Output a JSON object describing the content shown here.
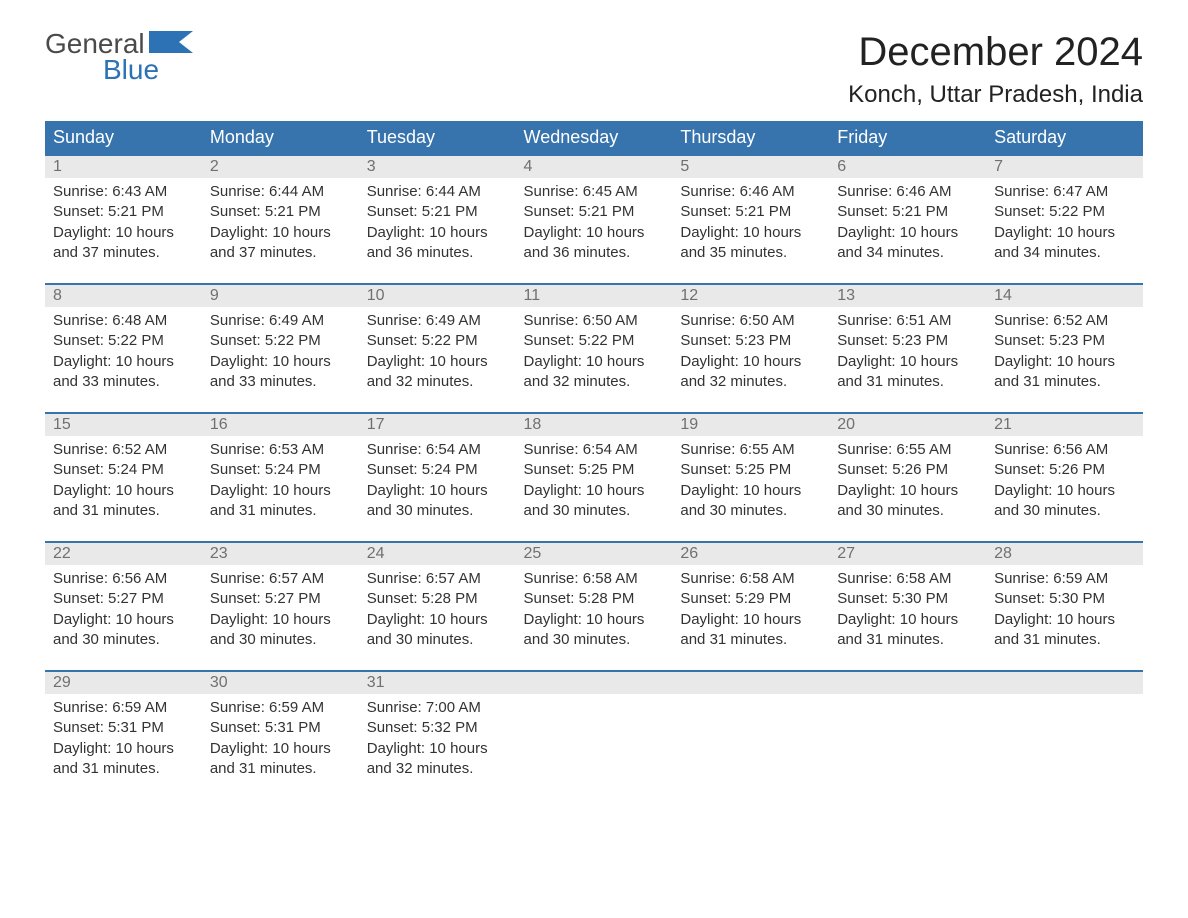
{
  "logo": {
    "word1": "General",
    "word2": "Blue",
    "flag_color": "#2d72b5",
    "word1_color": "#4a4a4a"
  },
  "title": "December 2024",
  "location": "Konch, Uttar Pradesh, India",
  "colors": {
    "header_bg": "#3773ad",
    "header_text": "#ffffff",
    "daynum_bg": "#e9e9e9",
    "daynum_text": "#707070",
    "body_text": "#333333",
    "row_border": "#3773ad",
    "page_bg": "#ffffff"
  },
  "typography": {
    "month_title_fontsize": 40,
    "location_fontsize": 24,
    "weekday_fontsize": 18,
    "daynum_fontsize": 16,
    "body_fontsize": 15
  },
  "weekdays": [
    "Sunday",
    "Monday",
    "Tuesday",
    "Wednesday",
    "Thursday",
    "Friday",
    "Saturday"
  ],
  "labels": {
    "sunrise": "Sunrise: ",
    "sunset": "Sunset: ",
    "daylight_prefix": "Daylight: ",
    "daylight_join": " and ",
    "daylight_suffix": "."
  },
  "weeks": [
    [
      {
        "n": "1",
        "sr": "6:43 AM",
        "ss": "5:21 PM",
        "dh": "10 hours",
        "dm": "37 minutes"
      },
      {
        "n": "2",
        "sr": "6:44 AM",
        "ss": "5:21 PM",
        "dh": "10 hours",
        "dm": "37 minutes"
      },
      {
        "n": "3",
        "sr": "6:44 AM",
        "ss": "5:21 PM",
        "dh": "10 hours",
        "dm": "36 minutes"
      },
      {
        "n": "4",
        "sr": "6:45 AM",
        "ss": "5:21 PM",
        "dh": "10 hours",
        "dm": "36 minutes"
      },
      {
        "n": "5",
        "sr": "6:46 AM",
        "ss": "5:21 PM",
        "dh": "10 hours",
        "dm": "35 minutes"
      },
      {
        "n": "6",
        "sr": "6:46 AM",
        "ss": "5:21 PM",
        "dh": "10 hours",
        "dm": "34 minutes"
      },
      {
        "n": "7",
        "sr": "6:47 AM",
        "ss": "5:22 PM",
        "dh": "10 hours",
        "dm": "34 minutes"
      }
    ],
    [
      {
        "n": "8",
        "sr": "6:48 AM",
        "ss": "5:22 PM",
        "dh": "10 hours",
        "dm": "33 minutes"
      },
      {
        "n": "9",
        "sr": "6:49 AM",
        "ss": "5:22 PM",
        "dh": "10 hours",
        "dm": "33 minutes"
      },
      {
        "n": "10",
        "sr": "6:49 AM",
        "ss": "5:22 PM",
        "dh": "10 hours",
        "dm": "32 minutes"
      },
      {
        "n": "11",
        "sr": "6:50 AM",
        "ss": "5:22 PM",
        "dh": "10 hours",
        "dm": "32 minutes"
      },
      {
        "n": "12",
        "sr": "6:50 AM",
        "ss": "5:23 PM",
        "dh": "10 hours",
        "dm": "32 minutes"
      },
      {
        "n": "13",
        "sr": "6:51 AM",
        "ss": "5:23 PM",
        "dh": "10 hours",
        "dm": "31 minutes"
      },
      {
        "n": "14",
        "sr": "6:52 AM",
        "ss": "5:23 PM",
        "dh": "10 hours",
        "dm": "31 minutes"
      }
    ],
    [
      {
        "n": "15",
        "sr": "6:52 AM",
        "ss": "5:24 PM",
        "dh": "10 hours",
        "dm": "31 minutes"
      },
      {
        "n": "16",
        "sr": "6:53 AM",
        "ss": "5:24 PM",
        "dh": "10 hours",
        "dm": "31 minutes"
      },
      {
        "n": "17",
        "sr": "6:54 AM",
        "ss": "5:24 PM",
        "dh": "10 hours",
        "dm": "30 minutes"
      },
      {
        "n": "18",
        "sr": "6:54 AM",
        "ss": "5:25 PM",
        "dh": "10 hours",
        "dm": "30 minutes"
      },
      {
        "n": "19",
        "sr": "6:55 AM",
        "ss": "5:25 PM",
        "dh": "10 hours",
        "dm": "30 minutes"
      },
      {
        "n": "20",
        "sr": "6:55 AM",
        "ss": "5:26 PM",
        "dh": "10 hours",
        "dm": "30 minutes"
      },
      {
        "n": "21",
        "sr": "6:56 AM",
        "ss": "5:26 PM",
        "dh": "10 hours",
        "dm": "30 minutes"
      }
    ],
    [
      {
        "n": "22",
        "sr": "6:56 AM",
        "ss": "5:27 PM",
        "dh": "10 hours",
        "dm": "30 minutes"
      },
      {
        "n": "23",
        "sr": "6:57 AM",
        "ss": "5:27 PM",
        "dh": "10 hours",
        "dm": "30 minutes"
      },
      {
        "n": "24",
        "sr": "6:57 AM",
        "ss": "5:28 PM",
        "dh": "10 hours",
        "dm": "30 minutes"
      },
      {
        "n": "25",
        "sr": "6:58 AM",
        "ss": "5:28 PM",
        "dh": "10 hours",
        "dm": "30 minutes"
      },
      {
        "n": "26",
        "sr": "6:58 AM",
        "ss": "5:29 PM",
        "dh": "10 hours",
        "dm": "31 minutes"
      },
      {
        "n": "27",
        "sr": "6:58 AM",
        "ss": "5:30 PM",
        "dh": "10 hours",
        "dm": "31 minutes"
      },
      {
        "n": "28",
        "sr": "6:59 AM",
        "ss": "5:30 PM",
        "dh": "10 hours",
        "dm": "31 minutes"
      }
    ],
    [
      {
        "n": "29",
        "sr": "6:59 AM",
        "ss": "5:31 PM",
        "dh": "10 hours",
        "dm": "31 minutes"
      },
      {
        "n": "30",
        "sr": "6:59 AM",
        "ss": "5:31 PM",
        "dh": "10 hours",
        "dm": "31 minutes"
      },
      {
        "n": "31",
        "sr": "7:00 AM",
        "ss": "5:32 PM",
        "dh": "10 hours",
        "dm": "32 minutes"
      },
      null,
      null,
      null,
      null
    ]
  ]
}
